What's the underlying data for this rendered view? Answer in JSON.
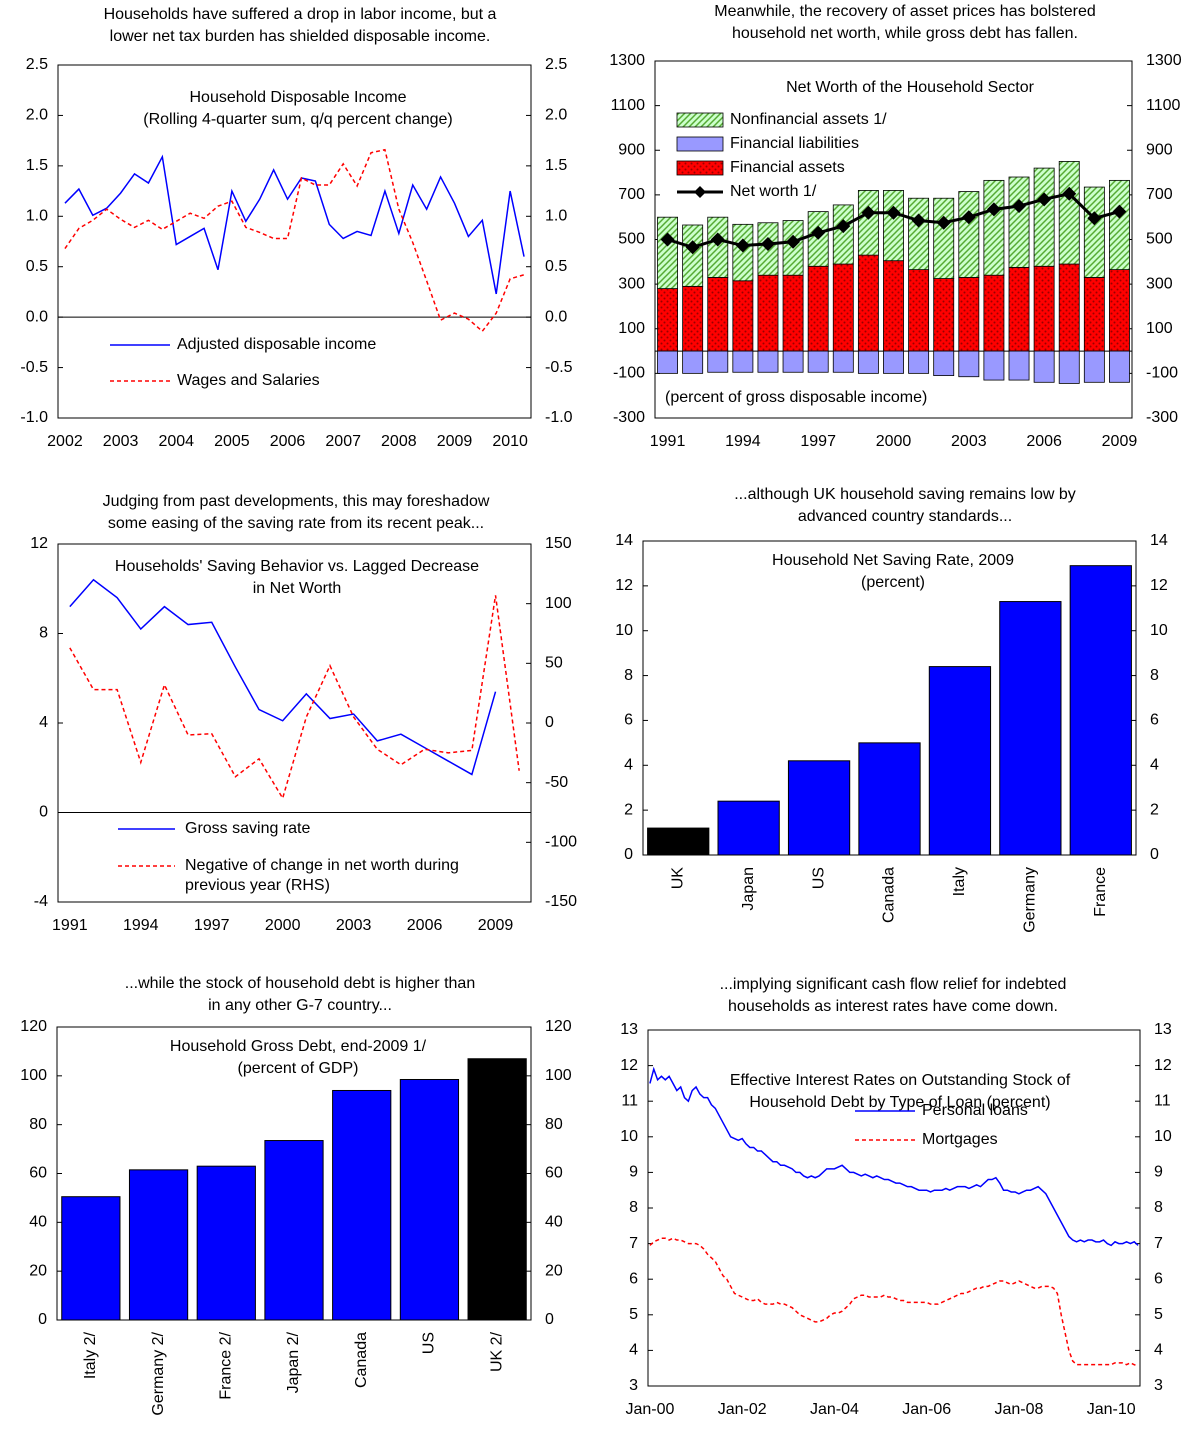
{
  "chart_data": [
    {
      "type": "line",
      "title": [
        "Households have suffered a drop in labor income, but a",
        "lower net tax burden has shielded disposable income."
      ],
      "subtitle": [
        "Household Disposable Income",
        "(Rolling 4-quarter sum, q/q percent change)"
      ],
      "categories": [
        "2002",
        null,
        null,
        null,
        "2003",
        null,
        null,
        null,
        "2004",
        null,
        null,
        null,
        "2005",
        null,
        null,
        null,
        "2006",
        null,
        null,
        null,
        "2007",
        null,
        null,
        null,
        "2008",
        null,
        null,
        null,
        "2009",
        null,
        null,
        null,
        "2010",
        null
      ],
      "series": [
        {
          "name": "Adjusted disposable income",
          "color": "#0000ff",
          "style": "solid",
          "values": [
            1.13,
            1.27,
            1.01,
            1.08,
            1.23,
            1.42,
            1.33,
            1.59,
            0.72,
            0.8,
            0.88,
            0.47,
            1.25,
            0.95,
            1.17,
            1.46,
            1.17,
            1.38,
            1.35,
            0.92,
            0.78,
            0.85,
            0.81,
            1.25,
            0.83,
            1.31,
            1.07,
            1.39,
            1.13,
            0.8,
            0.96,
            0.23,
            1.25,
            0.6
          ]
        },
        {
          "name": "Wages and Salaries",
          "color": "#ff0000",
          "style": "dashed",
          "values": [
            0.68,
            0.88,
            0.96,
            1.07,
            0.97,
            0.89,
            0.96,
            0.87,
            0.95,
            1.03,
            0.98,
            1.1,
            1.15,
            0.89,
            0.84,
            0.78,
            0.78,
            1.38,
            1.31,
            1.31,
            1.52,
            1.3,
            1.63,
            1.66,
            1.07,
            0.74,
            0.36,
            -0.03,
            0.04,
            -0.02,
            -0.14,
            0.04,
            0.38,
            0.42
          ]
        }
      ],
      "ylim": [
        -1,
        2.5
      ],
      "yticks": [
        {
          "value": -1,
          "label": "-1.0"
        },
        -0.5,
        {
          "value": 0,
          "label": "0.0"
        },
        0.5,
        {
          "value": 1,
          "label": "1.0"
        },
        1.5,
        {
          "value": 2,
          "label": "2.0"
        },
        2.5
      ],
      "right_axis": "mirror",
      "legend": "lower center"
    },
    {
      "type": "bar",
      "stacked": true,
      "title": [
        "Meanwhile, the recovery of asset prices has bolstered",
        "household net worth, while gross debt has fallen."
      ],
      "subtitle": [
        "Net Worth of the Household Sector"
      ],
      "note": "(percent of gross disposable income)",
      "categories": [
        "1991",
        null,
        null,
        "1994",
        null,
        null,
        "1997",
        null,
        null,
        "2000",
        null,
        null,
        "2003",
        null,
        null,
        "2006",
        null,
        null,
        "2009"
      ],
      "series": [
        {
          "name": "Financial assets",
          "kind": "bar",
          "color": "#ff0000",
          "pattern": "dots",
          "pattern_color": "#990000",
          "values": [
            280,
            290,
            330,
            315,
            340,
            340,
            380,
            390,
            430,
            405,
            365,
            325,
            330,
            340,
            375,
            380,
            390,
            330,
            365
          ]
        },
        {
          "name": "Financial liabilities",
          "kind": "bar",
          "color": "#9999ff",
          "values": [
            -100,
            -100,
            -95,
            -95,
            -95,
            -95,
            -95,
            -95,
            -100,
            -100,
            -100,
            -110,
            -115,
            -130,
            -130,
            -140,
            -145,
            -140,
            -140
          ]
        },
        {
          "name": "Nonfinancial assets 1/",
          "kind": "bar",
          "color": "#ccffcc",
          "pattern": "hatch",
          "pattern_color": "#55aa33",
          "values": [
            320,
            275,
            270,
            253,
            235,
            245,
            245,
            265,
            290,
            315,
            320,
            360,
            385,
            425,
            405,
            440,
            460,
            405,
            400
          ]
        },
        {
          "name": "Net worth 1/",
          "kind": "line",
          "color": "#000000",
          "marker": "diamond",
          "values": [
            500,
            465,
            500,
            473,
            480,
            490,
            530,
            560,
            620,
            620,
            585,
            575,
            600,
            635,
            650,
            680,
            705,
            595,
            625
          ]
        }
      ],
      "ylim": [
        -300,
        1300
      ],
      "yticks": [
        -300,
        -100,
        100,
        300,
        500,
        700,
        900,
        1100,
        1300
      ],
      "right_axis": "mirror",
      "legend": "upper left"
    },
    {
      "type": "line",
      "title": [
        "Judging from past developments, this may foreshadow",
        "some easing of the saving rate from its recent peak..."
      ],
      "subtitle": [
        "Households' Saving Behavior vs. Lagged Decrease",
        "in Net Worth"
      ],
      "categories": [
        "1991",
        null,
        null,
        "1994",
        null,
        null,
        "1997",
        null,
        null,
        "2000",
        null,
        null,
        "2003",
        null,
        null,
        "2006",
        null,
        null,
        "2009",
        null
      ],
      "series": [
        {
          "name": "Gross saving rate",
          "color": "#0000ff",
          "style": "solid",
          "values": [
            9.2,
            10.4,
            9.6,
            8.2,
            9.2,
            8.4,
            8.5,
            6.5,
            4.6,
            4.1,
            5.3,
            4.2,
            4.4,
            3.2,
            3.5,
            2.9,
            2.3,
            1.7,
            5.4,
            null
          ]
        },
        {
          "name": "Negative of change in net worth during previous year (RHS)",
          "color": "#ff0000",
          "style": "dashed",
          "axis": "y2",
          "values": [
            63,
            28,
            28,
            -33,
            32,
            -10,
            -9,
            -45,
            -30,
            -63,
            5,
            48,
            5,
            -22,
            -35,
            -22,
            -25,
            -23,
            107,
            -40
          ]
        }
      ],
      "ylim": [
        -4,
        12
      ],
      "yticks": [
        -4,
        0,
        4,
        8,
        12
      ],
      "y2lim": [
        -150,
        150
      ],
      "y2ticks": [
        -150,
        -100,
        -50,
        0,
        50,
        100,
        150
      ],
      "legend": "lower left"
    },
    {
      "type": "bar",
      "title": [
        "...although UK household saving remains low by",
        "advanced country standards..."
      ],
      "subtitle": [
        "Household Net Saving Rate, 2009",
        "(percent)"
      ],
      "categories": [
        "UK",
        "Japan",
        "US",
        "Canada",
        "Italy",
        "Germany",
        "France"
      ],
      "values": [
        1.2,
        2.4,
        4.2,
        5.0,
        8.4,
        11.3,
        12.9
      ],
      "colors": [
        "#000000",
        "#0000ff",
        "#0000ff",
        "#0000ff",
        "#0000ff",
        "#0000ff",
        "#0000ff"
      ],
      "ylim": [
        0,
        14
      ],
      "yticks": [
        0,
        2,
        4,
        6,
        8,
        10,
        12,
        14
      ],
      "right_axis": "mirror"
    },
    {
      "type": "bar",
      "title": [
        "...while the stock of household debt is higher than",
        "in any other G-7 country..."
      ],
      "subtitle": [
        "Household Gross Debt, end-2009 1/",
        "(percent of GDP)"
      ],
      "categories": [
        "Italy 2/",
        "Germany 2/",
        "France 2/",
        "Japan 2/",
        "Canada",
        "US",
        "UK 2/"
      ],
      "values": [
        50.5,
        61.5,
        63,
        73.5,
        94,
        98.5,
        107
      ],
      "colors": [
        "#0000ff",
        "#0000ff",
        "#0000ff",
        "#0000ff",
        "#0000ff",
        "#0000ff",
        "#000000"
      ],
      "ylim": [
        0,
        120
      ],
      "yticks": [
        0,
        20,
        40,
        60,
        80,
        100,
        120
      ],
      "right_axis": "mirror"
    },
    {
      "type": "line",
      "title": [
        "...implying significant cash flow relief for indebted",
        "households as interest rates have come down."
      ],
      "subtitle": [
        "Effective Interest Rates on Outstanding Stock of",
        "Household Debt by Type of Loan (percent)"
      ],
      "categories": [
        "Jan-00",
        null,
        null,
        null,
        null,
        null,
        null,
        null,
        null,
        null,
        null,
        null,
        null,
        null,
        null,
        null,
        null,
        null,
        null,
        null,
        null,
        null,
        null,
        null,
        "Jan-02",
        null,
        null,
        null,
        null,
        null,
        null,
        null,
        null,
        null,
        null,
        null,
        null,
        null,
        null,
        null,
        null,
        null,
        null,
        null,
        null,
        null,
        null,
        null,
        "Jan-04",
        null,
        null,
        null,
        null,
        null,
        null,
        null,
        null,
        null,
        null,
        null,
        null,
        null,
        null,
        null,
        null,
        null,
        null,
        null,
        null,
        null,
        null,
        null,
        "Jan-06",
        null,
        null,
        null,
        null,
        null,
        null,
        null,
        null,
        null,
        null,
        null,
        null,
        null,
        null,
        null,
        null,
        null,
        null,
        null,
        null,
        null,
        null,
        null,
        "Jan-08",
        null,
        null,
        null,
        null,
        null,
        null,
        null,
        null,
        null,
        null,
        null,
        null,
        null,
        null,
        null,
        null,
        null,
        null,
        null,
        null,
        null,
        null,
        null,
        "Jan-10",
        null,
        null,
        null,
        null,
        null,
        null,
        null
      ],
      "series": [
        {
          "name": "Personal loans",
          "color": "#0000ff",
          "style": "solid",
          "values": [
            11.5,
            11.9,
            11.6,
            11.7,
            11.6,
            11.7,
            11.5,
            11.3,
            11.4,
            11.1,
            11.0,
            11.3,
            11.4,
            11.2,
            11.1,
            11.1,
            10.9,
            10.8,
            10.6,
            10.4,
            10.2,
            10.0,
            9.95,
            9.9,
            9.95,
            9.8,
            9.7,
            9.7,
            9.6,
            9.6,
            9.5,
            9.4,
            9.3,
            9.3,
            9.2,
            9.2,
            9.15,
            9.1,
            9.0,
            9.0,
            8.9,
            8.85,
            8.9,
            8.85,
            8.9,
            9.0,
            9.1,
            9.1,
            9.1,
            9.15,
            9.2,
            9.1,
            9.0,
            9.0,
            8.95,
            8.9,
            8.95,
            8.9,
            8.85,
            8.9,
            8.85,
            8.8,
            8.8,
            8.75,
            8.7,
            8.7,
            8.65,
            8.6,
            8.6,
            8.55,
            8.5,
            8.5,
            8.5,
            8.45,
            8.5,
            8.5,
            8.5,
            8.55,
            8.5,
            8.55,
            8.6,
            8.6,
            8.6,
            8.55,
            8.6,
            8.65,
            8.6,
            8.7,
            8.8,
            8.8,
            8.85,
            8.7,
            8.5,
            8.5,
            8.45,
            8.45,
            8.4,
            8.45,
            8.5,
            8.5,
            8.55,
            8.6,
            8.5,
            8.4,
            8.2,
            8.0,
            7.8,
            7.6,
            7.4,
            7.2,
            7.1,
            7.05,
            7.1,
            7.05,
            7.1,
            7.1,
            7.05,
            7.05,
            7.1,
            7.0,
            6.95,
            7.05,
            7.0,
            7.0,
            7.05,
            7.0,
            7.05,
            6.95
          ]
        },
        {
          "name": "Mortgages",
          "color": "#ff0000",
          "style": "dashed",
          "values": [
            6.95,
            7.05,
            7.1,
            7.15,
            7.15,
            7.1,
            7.15,
            7.1,
            7.1,
            7.05,
            7.0,
            7.0,
            7.0,
            6.95,
            6.85,
            6.7,
            6.6,
            6.5,
            6.3,
            6.1,
            6.0,
            5.8,
            5.6,
            5.55,
            5.5,
            5.45,
            5.4,
            5.4,
            5.45,
            5.35,
            5.3,
            5.3,
            5.3,
            5.35,
            5.3,
            5.3,
            5.25,
            5.2,
            5.1,
            5.0,
            4.95,
            4.9,
            4.85,
            4.8,
            4.8,
            4.85,
            4.9,
            5.0,
            5.05,
            5.05,
            5.1,
            5.2,
            5.3,
            5.45,
            5.5,
            5.55,
            5.55,
            5.5,
            5.5,
            5.5,
            5.5,
            5.55,
            5.5,
            5.5,
            5.45,
            5.4,
            5.4,
            5.35,
            5.35,
            5.35,
            5.35,
            5.35,
            5.35,
            5.3,
            5.3,
            5.3,
            5.35,
            5.4,
            5.45,
            5.5,
            5.55,
            5.6,
            5.6,
            5.65,
            5.7,
            5.75,
            5.75,
            5.8,
            5.8,
            5.85,
            5.9,
            5.95,
            5.95,
            5.9,
            5.85,
            5.9,
            5.95,
            5.9,
            5.85,
            5.8,
            5.75,
            5.75,
            5.8,
            5.8,
            5.8,
            5.75,
            5.6,
            5.0,
            4.5,
            4.0,
            3.7,
            3.6,
            3.6,
            3.6,
            3.6,
            3.6,
            3.6,
            3.6,
            3.6,
            3.6,
            3.6,
            3.65,
            3.65,
            3.65,
            3.6,
            3.65,
            3.6,
            3.55
          ]
        }
      ],
      "ylim": [
        3,
        13
      ],
      "yticks": [
        3,
        4,
        5,
        6,
        7,
        8,
        9,
        10,
        11,
        12,
        13
      ],
      "right_axis": "mirror",
      "legend": "upper right"
    }
  ]
}
